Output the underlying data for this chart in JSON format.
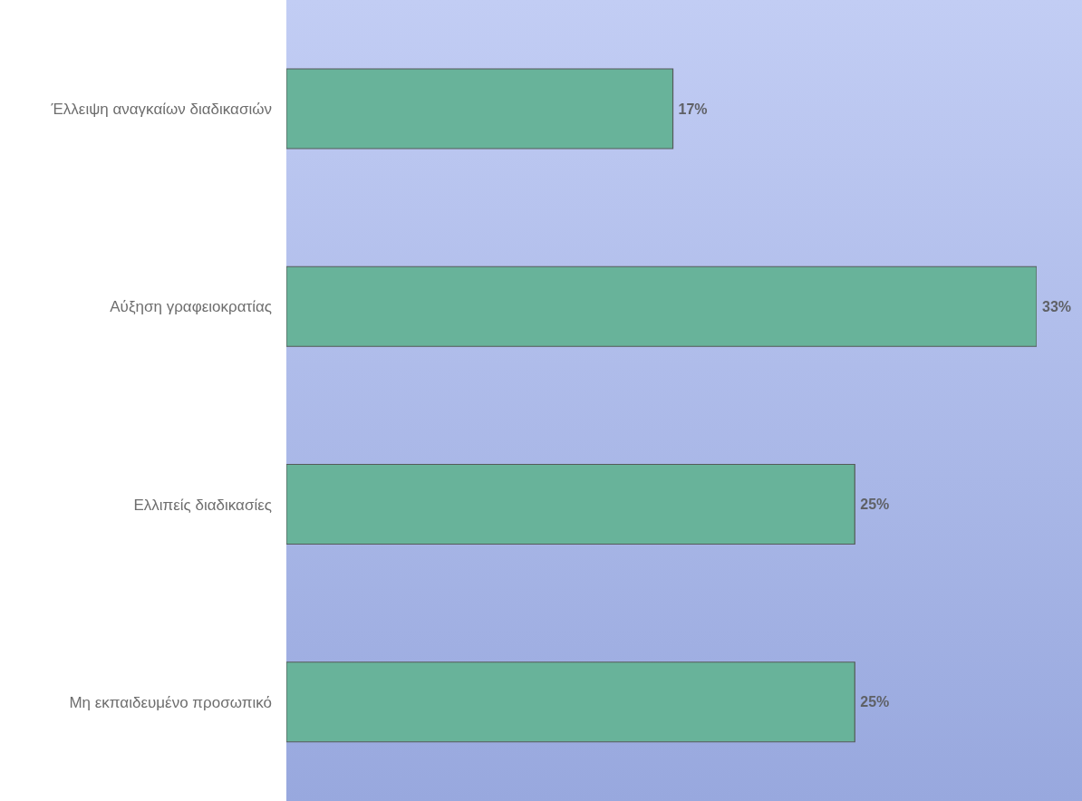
{
  "chart_data": {
    "type": "bar",
    "orientation": "horizontal",
    "categories": [
      "Έλλειψη αναγκαίων διαδικασιών",
      "Αύξηση γραφειοκρατίας",
      "Ελλιπείς διαδικασίες",
      "Μη εκπαιδευμένο προσωπικό"
    ],
    "values": [
      17,
      33,
      25,
      25
    ],
    "value_labels": [
      "17%",
      "33%",
      "25%",
      "25%"
    ],
    "color": "#68b39a",
    "tick_labels": "y"
  }
}
